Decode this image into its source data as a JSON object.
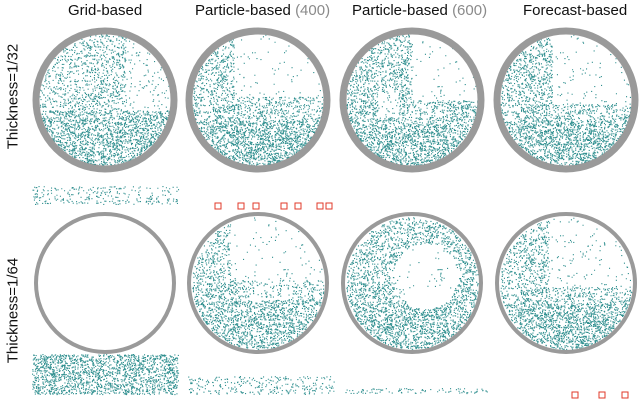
{
  "columns": [
    {
      "label": "Grid-based",
      "resolution": ""
    },
    {
      "label": "Particle-based",
      "resolution": "(400)"
    },
    {
      "label": "Particle-based",
      "resolution": "(600)"
    },
    {
      "label": "Forecast-based",
      "resolution": ""
    }
  ],
  "rows": [
    {
      "label": "Thickness=1/32"
    },
    {
      "label": "Thickness=1/64"
    }
  ],
  "colors": {
    "particle": "#2f8f8f",
    "container_ring": "#9a9a9a",
    "marker": "#e03a2a",
    "text": "#111111",
    "resolution_text": "#8a8a8a"
  }
}
